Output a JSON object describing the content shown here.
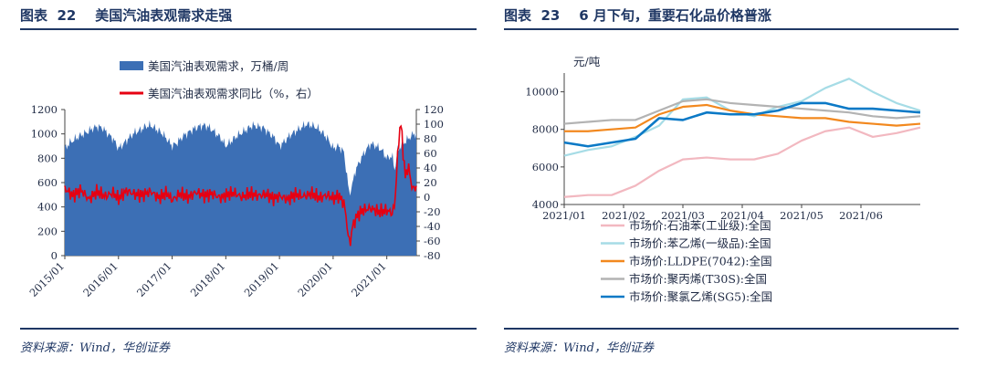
{
  "left_panel": {
    "figure_title": "图表  22    美国汽油表观需求走强",
    "source": "资料来源：Wind，华创证券"
  },
  "right_panel": {
    "figure_title": "图表  23    6 月下旬，重要石化品价格普涨",
    "source": "资料来源：Wind，华创证券"
  },
  "colors": {
    "title_navy": "#1f3764",
    "bar_blue": "#3c6fb5",
    "line_red": "#e60012",
    "benzene": "#f2b8c0",
    "styrene": "#a6dce6",
    "lldpe": "#f2881e",
    "pp": "#b3b3b3",
    "pvc": "#0b79c6"
  },
  "chart_data": [
    {
      "type": "area",
      "legend": [
        "美国汽油表观需求，万桶/周",
        "美国汽油表观需求同比（%，右）"
      ],
      "x_tick_labels": [
        "2015/01",
        "2016/01",
        "2017/01",
        "2018/01",
        "2019/01",
        "2020/01",
        "2021/01"
      ],
      "y_left": {
        "min": 0,
        "max": 1200,
        "ticks": [
          "0",
          "200",
          "400",
          "600",
          "800",
          "1000",
          "1200"
        ]
      },
      "y_right": {
        "min": -80,
        "max": 120,
        "ticks": [
          "-80",
          "-60",
          "-40",
          "-20",
          "0",
          "20",
          "40",
          "60",
          "80",
          "100",
          "120"
        ]
      },
      "series": [
        {
          "name": "美国汽油表观需求，万桶/周",
          "axis": "left",
          "x": [
            2015.0,
            2015.1,
            2015.2,
            2015.3,
            2015.4,
            2015.5,
            2015.6,
            2015.7,
            2015.8,
            2015.9,
            2016.0,
            2016.1,
            2016.2,
            2016.3,
            2016.4,
            2016.5,
            2016.6,
            2016.7,
            2016.8,
            2016.9,
            2017.0,
            2017.1,
            2017.2,
            2017.3,
            2017.4,
            2017.5,
            2017.6,
            2017.7,
            2017.8,
            2017.9,
            2018.0,
            2018.1,
            2018.2,
            2018.3,
            2018.4,
            2018.5,
            2018.6,
            2018.7,
            2018.8,
            2018.9,
            2019.0,
            2019.1,
            2019.2,
            2019.3,
            2019.4,
            2019.5,
            2019.6,
            2019.7,
            2019.8,
            2019.9,
            2020.0,
            2020.1,
            2020.2,
            2020.25,
            2020.3,
            2020.35,
            2020.4,
            2020.5,
            2020.6,
            2020.7,
            2020.8,
            2020.9,
            2021.0,
            2021.1,
            2021.15,
            2021.2,
            2021.3,
            2021.4,
            2021.5,
            2021.55
          ],
          "values": [
            880,
            930,
            960,
            990,
            1010,
            1040,
            1060,
            1050,
            1000,
            960,
            880,
            920,
            970,
            1010,
            1030,
            1060,
            1070,
            1040,
            1010,
            960,
            900,
            930,
            980,
            1010,
            1040,
            1060,
            1070,
            1050,
            1010,
            970,
            900,
            940,
            980,
            1010,
            1040,
            1070,
            1060,
            1050,
            1010,
            970,
            900,
            940,
            990,
            1020,
            1050,
            1080,
            1070,
            1050,
            1010,
            960,
            880,
            900,
            850,
            680,
            510,
            560,
            680,
            780,
            860,
            920,
            900,
            870,
            800,
            820,
            700,
            870,
            920,
            960,
            1000,
            1000
          ]
        },
        {
          "name": "美国汽油表观需求同比（%，右）",
          "axis": "right",
          "x": [
            2015.0,
            2015.15,
            2015.3,
            2015.45,
            2015.6,
            2015.75,
            2015.9,
            2016.0,
            2016.15,
            2016.3,
            2016.45,
            2016.6,
            2016.75,
            2016.9,
            2017.0,
            2017.15,
            2017.3,
            2017.45,
            2017.6,
            2017.75,
            2017.9,
            2018.0,
            2018.15,
            2018.3,
            2018.45,
            2018.6,
            2018.75,
            2018.9,
            2019.0,
            2019.15,
            2019.3,
            2019.45,
            2019.6,
            2019.75,
            2019.9,
            2020.0,
            2020.1,
            2020.2,
            2020.25,
            2020.28,
            2020.32,
            2020.36,
            2020.45,
            2020.55,
            2020.7,
            2020.85,
            2021.0,
            2021.1,
            2021.15,
            2021.18,
            2021.22,
            2021.26,
            2021.3,
            2021.35,
            2021.4,
            2021.45,
            2021.5,
            2021.55
          ],
          "values": [
            12,
            2,
            10,
            -3,
            8,
            1,
            6,
            -2,
            9,
            4,
            3,
            8,
            -1,
            6,
            -4,
            5,
            0,
            7,
            2,
            5,
            -1,
            3,
            6,
            0,
            5,
            2,
            4,
            -2,
            2,
            -3,
            4,
            1,
            5,
            -1,
            3,
            -2,
            2,
            -8,
            -30,
            -55,
            -62,
            -40,
            -25,
            -18,
            -15,
            -20,
            -18,
            -22,
            -10,
            30,
            75,
            105,
            65,
            25,
            45,
            20,
            10,
            15
          ]
        }
      ]
    },
    {
      "type": "line",
      "unit_label": "元/吨",
      "x_tick_labels": [
        "2021/01",
        "2021/02",
        "2021/03",
        "2021/04",
        "2021/05",
        "2021/06"
      ],
      "y": {
        "min": 4000,
        "max": 11000,
        "ticks": [
          "4000",
          "6000",
          "8000",
          "10000"
        ]
      },
      "x_domain": [
        0,
        6
      ],
      "series": [
        {
          "name": "市场价:石油苯(工业级):全国",
          "color_key": "benzene",
          "x": [
            0,
            0.4,
            0.8,
            1.2,
            1.6,
            2.0,
            2.4,
            2.8,
            3.2,
            3.6,
            4.0,
            4.4,
            4.8,
            5.2,
            5.6,
            6.0
          ],
          "values": [
            4400,
            4500,
            4500,
            5000,
            5800,
            6400,
            6500,
            6400,
            6400,
            6700,
            7400,
            7900,
            8100,
            7600,
            7800,
            8100
          ]
        },
        {
          "name": "市场价:苯乙烯(一级品):全国",
          "color_key": "styrene",
          "x": [
            0,
            0.4,
            0.8,
            1.2,
            1.6,
            2.0,
            2.4,
            2.8,
            3.2,
            3.6,
            4.0,
            4.4,
            4.8,
            5.2,
            5.6,
            6.0
          ],
          "values": [
            6600,
            6900,
            7100,
            7600,
            8200,
            9600,
            9700,
            9000,
            8700,
            9200,
            9500,
            10200,
            10700,
            10000,
            9400,
            9000
          ]
        },
        {
          "name": "市场价:LLDPE(7042):全国",
          "color_key": "lldpe",
          "x": [
            0,
            0.4,
            0.8,
            1.2,
            1.6,
            2.0,
            2.4,
            2.8,
            3.2,
            3.6,
            4.0,
            4.4,
            4.8,
            5.2,
            5.6,
            6.0
          ],
          "values": [
            7900,
            7900,
            8000,
            8100,
            8800,
            9200,
            9300,
            9000,
            8800,
            8700,
            8600,
            8600,
            8400,
            8300,
            8200,
            8300
          ]
        },
        {
          "name": "市场价:聚丙烯(T30S):全国",
          "color_key": "pp",
          "x": [
            0,
            0.4,
            0.8,
            1.2,
            1.6,
            2.0,
            2.4,
            2.8,
            3.2,
            3.6,
            4.0,
            4.4,
            4.8,
            5.2,
            5.6,
            6.0
          ],
          "values": [
            8300,
            8400,
            8500,
            8500,
            9000,
            9500,
            9600,
            9400,
            9300,
            9200,
            9100,
            9000,
            8900,
            8700,
            8600,
            8700
          ]
        },
        {
          "name": "市场价:聚氯乙烯(SG5):全国",
          "color_key": "pvc",
          "x": [
            0,
            0.4,
            0.8,
            1.2,
            1.6,
            2.0,
            2.4,
            2.8,
            3.2,
            3.6,
            4.0,
            4.4,
            4.8,
            5.2,
            5.6,
            6.0
          ],
          "values": [
            7300,
            7100,
            7300,
            7500,
            8600,
            8500,
            8900,
            8800,
            8800,
            9000,
            9400,
            9400,
            9100,
            9100,
            9000,
            8900
          ]
        }
      ]
    }
  ]
}
